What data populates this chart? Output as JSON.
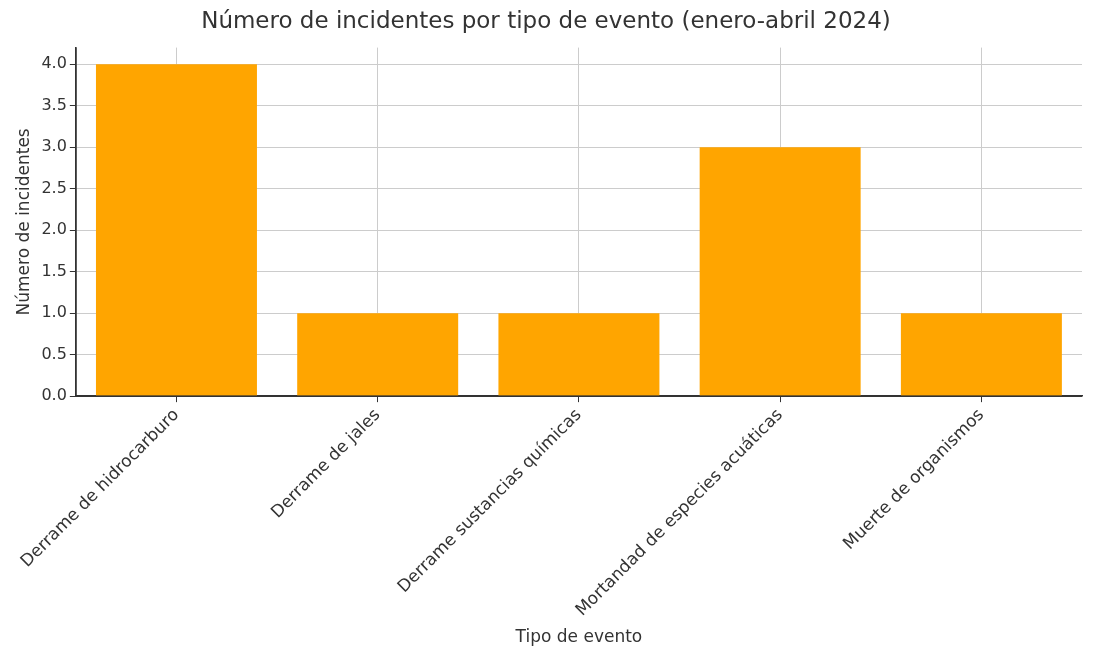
{
  "chart_data": {
    "type": "bar",
    "title": "Número de incidentes por tipo de evento (enero-abril 2024)",
    "xlabel": "Tipo de evento",
    "ylabel": "Número de incidentes",
    "categories": [
      "Derrame de hidrocarburo",
      "Derrame de jales",
      "Derrame sustancias químicas",
      "Mortandad de especies acuáticas",
      "Muerte de organismos"
    ],
    "values": [
      4,
      1,
      1,
      3,
      1
    ],
    "color": "#ffa500",
    "ylim": [
      0,
      4.2
    ],
    "yticks": [
      {
        "value": 0,
        "label": "0.0"
      },
      {
        "value": 0.5,
        "label": "0.5"
      },
      {
        "value": 1,
        "label": "1.0"
      },
      {
        "value": 1.5,
        "label": "1.5"
      },
      {
        "value": 2,
        "label": "2.0"
      },
      {
        "value": 2.5,
        "label": "2.5"
      },
      {
        "value": 3,
        "label": "3.0"
      },
      {
        "value": 3.5,
        "label": "3.5"
      },
      {
        "value": 4,
        "label": "4.0"
      }
    ],
    "grid": true,
    "legend": false
  }
}
